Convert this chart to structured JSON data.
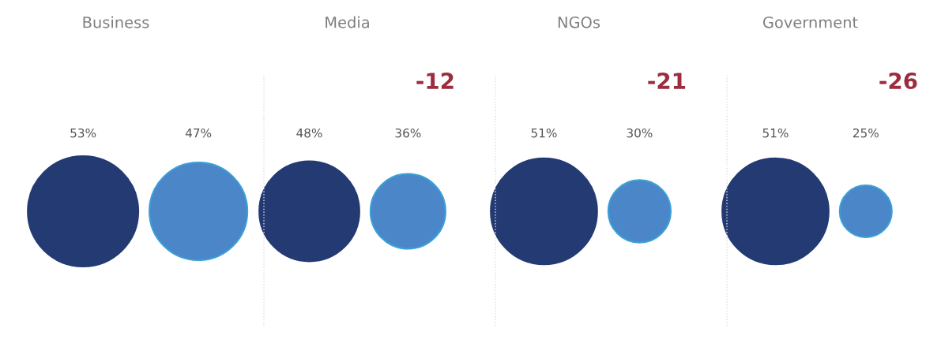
{
  "chart_data": [
    {
      "type": "other",
      "title": "Business",
      "categories": [
        null,
        null
      ],
      "values": [
        53,
        47
      ],
      "value_labels": [
        "53%",
        "47%"
      ],
      "colors": [
        "#243a73",
        "#4a86c8"
      ]
    },
    {
      "type": "other",
      "title": "Media",
      "categories": [
        null,
        null
      ],
      "values": [
        48,
        36
      ],
      "value_labels": [
        "48%",
        "36%"
      ],
      "colors": [
        "#243a73",
        "#4a86c8"
      ],
      "annotations": [
        "-12"
      ]
    },
    {
      "type": "other",
      "title": "NGOs",
      "categories": [
        null,
        null
      ],
      "values": [
        51,
        30
      ],
      "value_labels": [
        "51%",
        "30%"
      ],
      "colors": [
        "#243a73",
        "#4a86c8"
      ],
      "annotations": [
        "-21"
      ]
    },
    {
      "type": "other",
      "title": "Government",
      "categories": [
        null,
        null
      ],
      "values": [
        51,
        25
      ],
      "value_labels": [
        "51%",
        "25%"
      ],
      "colors": [
        "#243a73",
        "#4a86c8"
      ],
      "annotations": [
        "-26"
      ]
    }
  ]
}
